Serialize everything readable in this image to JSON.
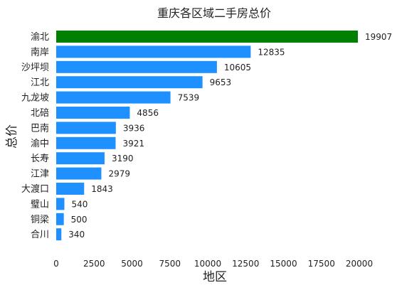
{
  "chart_data": {
    "type": "bar",
    "orientation": "horizontal",
    "title": "重庆各区域二手房总价",
    "xlabel": "地区",
    "ylabel": "总价",
    "categories": [
      "渝北",
      "南岸",
      "沙坪坝",
      "江北",
      "九龙坡",
      "北碚",
      "巴南",
      "渝中",
      "长寿",
      "江津",
      "大渡口",
      "璧山",
      "铜梁",
      "合川"
    ],
    "values": [
      19907,
      12835,
      10605,
      9653,
      7539,
      4856,
      3936,
      3921,
      3190,
      2979,
      1843,
      540,
      500,
      340
    ],
    "xlim": [
      0,
      20000
    ],
    "xticks": [
      0,
      2500,
      5000,
      7500,
      10000,
      12500,
      15000,
      17500,
      20000
    ],
    "grid": false,
    "colors": {
      "highlight": "#008000",
      "default": "#1E90FF"
    },
    "highlight_index": 0
  }
}
